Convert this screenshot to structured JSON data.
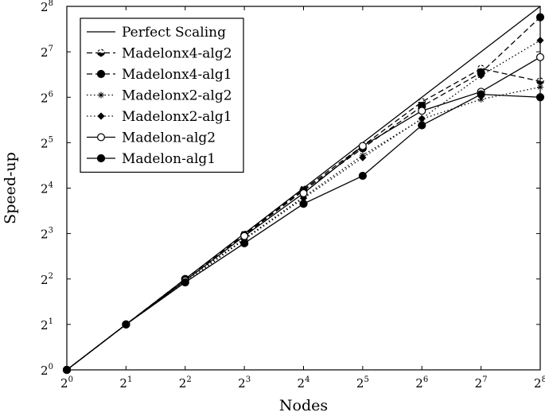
{
  "chart_data": {
    "type": "line",
    "title": "",
    "xlabel": "Nodes",
    "ylabel": "Speed-up",
    "x_scale": "log2",
    "y_scale": "log2",
    "xlim": [
      1,
      256
    ],
    "ylim": [
      1,
      256
    ],
    "grid": false,
    "legend_position": "top-left",
    "x_ticks": [
      1,
      2,
      4,
      8,
      16,
      32,
      64,
      128,
      256
    ],
    "x_tick_labels": [
      {
        "base": "2",
        "exp": "0"
      },
      {
        "base": "2",
        "exp": "1"
      },
      {
        "base": "2",
        "exp": "2"
      },
      {
        "base": "2",
        "exp": "3"
      },
      {
        "base": "2",
        "exp": "4"
      },
      {
        "base": "2",
        "exp": "5"
      },
      {
        "base": "2",
        "exp": "6"
      },
      {
        "base": "2",
        "exp": "7"
      },
      {
        "base": "2",
        "exp": "8"
      }
    ],
    "y_ticks": [
      1,
      2,
      4,
      8,
      16,
      32,
      64,
      128,
      256
    ],
    "y_tick_labels": [
      {
        "base": "2",
        "exp": "0"
      },
      {
        "base": "2",
        "exp": "1"
      },
      {
        "base": "2",
        "exp": "2"
      },
      {
        "base": "2",
        "exp": "3"
      },
      {
        "base": "2",
        "exp": "4"
      },
      {
        "base": "2",
        "exp": "5"
      },
      {
        "base": "2",
        "exp": "6"
      },
      {
        "base": "2",
        "exp": "7"
      },
      {
        "base": "2",
        "exp": "8"
      }
    ],
    "x": [
      1,
      2,
      4,
      8,
      16,
      32,
      64,
      128,
      256
    ],
    "series": [
      {
        "name": "Perfect Scaling",
        "style": "solid",
        "marker": "none",
        "values": [
          1,
          2,
          4,
          8,
          16,
          32,
          64,
          128,
          256
        ]
      },
      {
        "name": "Madelonx4-alg2",
        "style": "dashed",
        "marker": "half-circle",
        "values": [
          1,
          2,
          4,
          7.9,
          15.7,
          30.5,
          59.6,
          99.0,
          81.6
        ]
      },
      {
        "name": "Madelonx4-alg1",
        "style": "dashed",
        "marker": "filled-circle",
        "values": [
          1,
          2,
          4,
          7.8,
          15.4,
          29.4,
          55.7,
          93.0,
          217.0
        ]
      },
      {
        "name": "Madelonx2-alg2",
        "style": "dotted",
        "marker": "star",
        "values": [
          1,
          2,
          3.9,
          7.4,
          14.0,
          26.4,
          45.9,
          62.0,
          74.7
        ]
      },
      {
        "name": "Madelonx2-alg1",
        "style": "dotted",
        "marker": "diamond",
        "values": [
          1,
          2,
          3.8,
          7.3,
          13.7,
          25.5,
          46.2,
          89.0,
          152.4
        ]
      },
      {
        "name": "Madelon-alg2",
        "style": "solid",
        "marker": "open-circle",
        "values": [
          1,
          2,
          3.9,
          7.7,
          14.8,
          30.4,
          52.0,
          69.6,
          118.0
        ]
      },
      {
        "name": "Madelon-alg1",
        "style": "solid",
        "marker": "filled-circle",
        "values": [
          1,
          2,
          3.8,
          6.9,
          12.6,
          19.3,
          41.7,
          66.9,
          64.0
        ]
      }
    ]
  }
}
